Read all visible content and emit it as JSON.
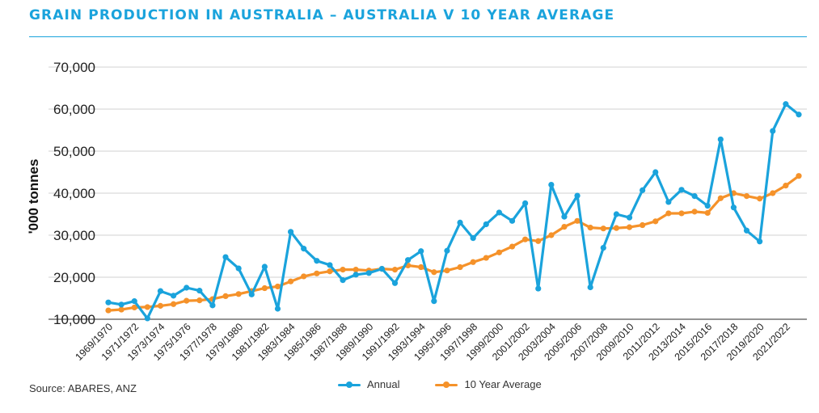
{
  "title": "GRAIN PRODUCTION IN AUSTRALIA – AUSTRALIA V 10 YEAR AVERAGE",
  "source": "Source: ABARES, ANZ",
  "colors": {
    "accent": "#1aa3dc",
    "annual": "#1aa3dc",
    "average": "#f5922a"
  },
  "chart_data": {
    "type": "line",
    "title": "GRAIN PRODUCTION IN AUSTRALIA – AUSTRALIA V 10 YEAR AVERAGE",
    "xlabel": "",
    "ylabel": "'000 tonnes",
    "ylim": [
      10000,
      70000
    ],
    "yticks": [
      "10,000",
      "20,000",
      "30,000",
      "40,000",
      "50,000",
      "60,000",
      "70,000"
    ],
    "grid": "horizontal",
    "legend_position": "bottom",
    "categories": [
      "1969/1970",
      "1970/1971",
      "1971/1972",
      "1972/1973",
      "1973/1974",
      "1974/1975",
      "1975/1976",
      "1976/1977",
      "1977/1978",
      "1978/1979",
      "1979/1980",
      "1980/1981",
      "1981/1982",
      "1982/1983",
      "1983/1984",
      "1984/1985",
      "1985/1986",
      "1986/1987",
      "1987/1988",
      "1988/1989",
      "1989/1990",
      "1990/1991",
      "1991/1992",
      "1992/1993",
      "1993/1994",
      "1994/1995",
      "1995/1996",
      "1996/1997",
      "1997/1998",
      "1998/1999",
      "1999/2000",
      "2000/2001",
      "2001/2002",
      "2002/2003",
      "2003/2004",
      "2004/2005",
      "2005/2006",
      "2006/2007",
      "2007/2008",
      "2008/2009",
      "2009/2010",
      "2010/2011",
      "2011/2012",
      "2012/2013",
      "2013/2014",
      "2014/2015",
      "2015/2016",
      "2016/2017",
      "2017/2018",
      "2018/2019",
      "2019/2020",
      "2020/2021",
      "2021/2022",
      "2022/2023"
    ],
    "tick_labels": [
      "1969/1970",
      "1971/1972",
      "1973/1974",
      "1975/1976",
      "1977/1978",
      "1979/1980",
      "1981/1982",
      "1983/1984",
      "1985/1986",
      "1987/1988",
      "1989/1990",
      "1991/1992",
      "1993/1994",
      "1995/1996",
      "1997/1998",
      "1999/2000",
      "2001/2002",
      "2003/2004",
      "2005/2006",
      "2007/2008",
      "2009/2010",
      "2011/2012",
      "2013/2014",
      "2015/2016",
      "2017/2018",
      "2019/2020",
      "2021/2022"
    ],
    "series": [
      {
        "name": "Annual",
        "values": [
          14000,
          13500,
          14300,
          10200,
          16700,
          15600,
          17500,
          16800,
          13300,
          24800,
          22100,
          15900,
          22500,
          12500,
          30800,
          26800,
          23900,
          22900,
          19300,
          20600,
          21000,
          22000,
          18600,
          24100,
          26200,
          14300,
          26300,
          33000,
          29300,
          32600,
          35400,
          33400,
          37600,
          17300,
          42000,
          34400,
          39400,
          17600,
          27000,
          35000,
          34200,
          40700,
          45000,
          37900,
          40800,
          39300,
          37000,
          52800,
          36600,
          31100,
          28500,
          54800,
          61200,
          58700
        ]
      },
      {
        "name": "10 Year Average",
        "values": [
          12100,
          12300,
          12800,
          12900,
          13200,
          13600,
          14400,
          14500,
          14800,
          15500,
          16000,
          16700,
          17400,
          17800,
          19000,
          20200,
          20900,
          21400,
          21800,
          21800,
          21600,
          22000,
          21800,
          22800,
          22400,
          21200,
          21600,
          22400,
          23600,
          24600,
          25900,
          27300,
          29000,
          28600,
          30000,
          32000,
          33400,
          31800,
          31600,
          31700,
          31900,
          32400,
          33300,
          35200,
          35200,
          35600,
          35300,
          38800,
          40000,
          39300,
          38700,
          40000,
          41800,
          44100
        ]
      }
    ]
  },
  "legend": [
    {
      "label": "Annual",
      "color": "#1aa3dc"
    },
    {
      "label": "10 Year Average",
      "color": "#f5922a"
    }
  ]
}
